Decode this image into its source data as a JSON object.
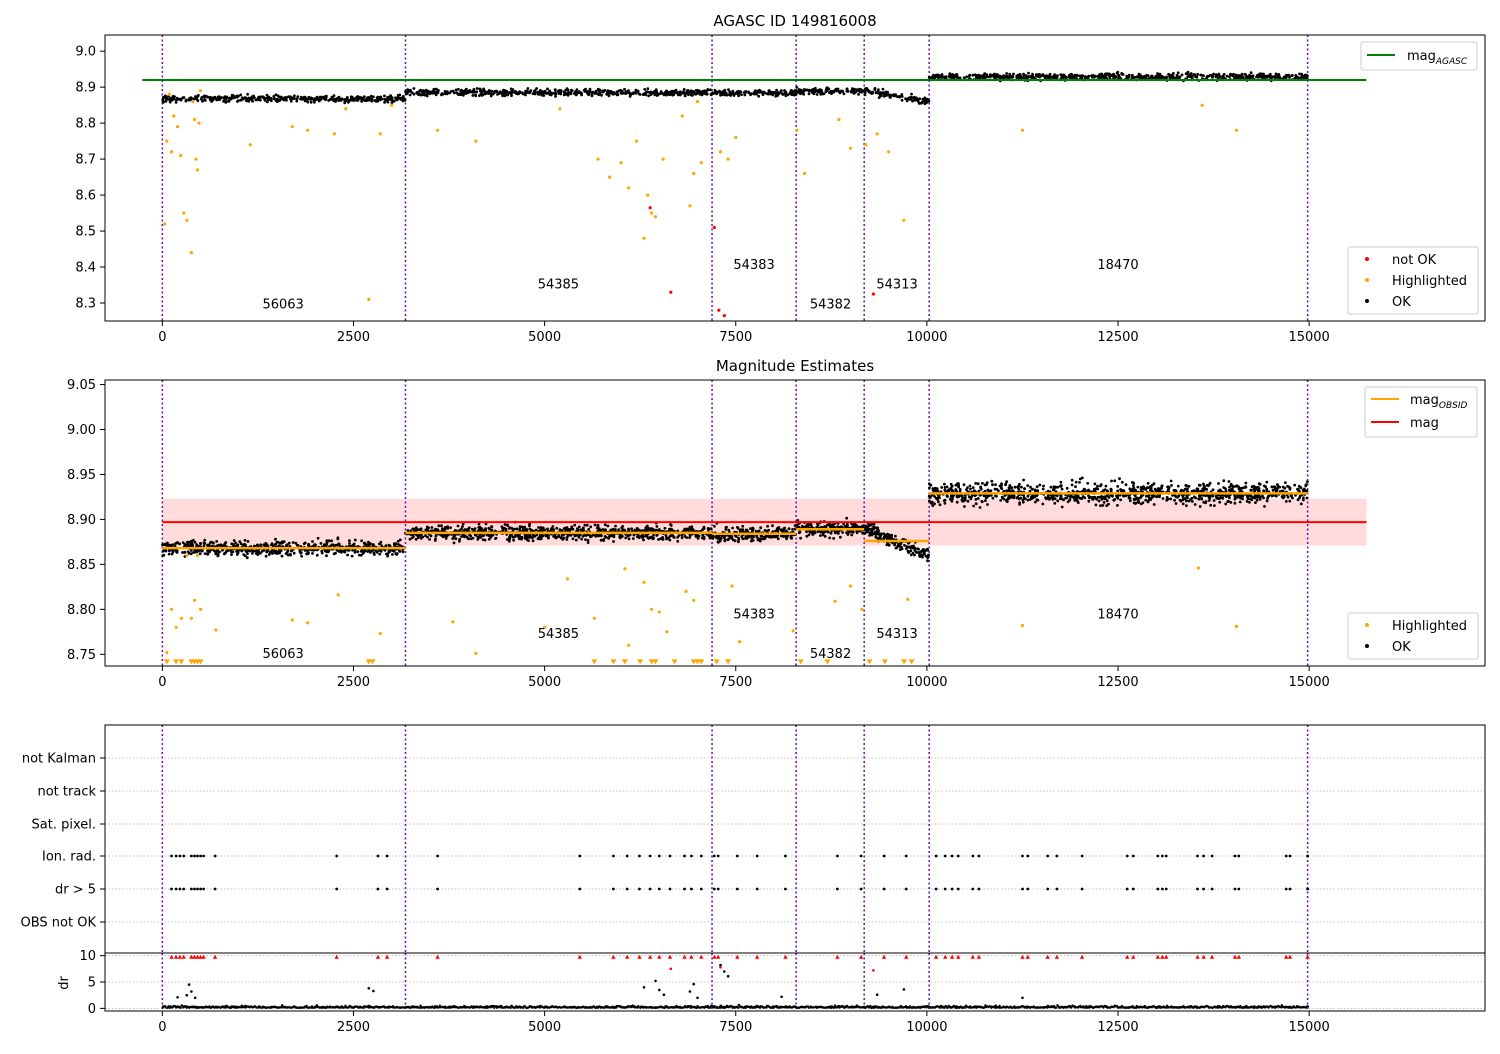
{
  "colors": {
    "ok": "#000000",
    "highlighted": "#ffa500",
    "not_ok": "#ff0000",
    "agasc_line": "#008000",
    "mag_line": "#ff0000",
    "mag_band": "#ffcccc",
    "obsid_line": "#ffa500",
    "obs_boundary": "#6a0dad"
  },
  "chart_data": [
    {
      "type": "scatter",
      "title": "AGASC ID 149816008",
      "xlabel": "",
      "ylabel": "",
      "xlim": [
        -750,
        17300
      ],
      "ylim": [
        8.25,
        9.045
      ],
      "x_ticks": [
        0,
        2500,
        5000,
        7500,
        10000,
        12500,
        15000
      ],
      "x_tick_labels": [
        "0",
        "2500",
        "5000",
        "7500",
        "10000",
        "12500",
        "15000"
      ],
      "y_ticks": [
        8.3,
        8.4,
        8.5,
        8.6,
        8.7,
        8.8,
        8.9,
        9.0
      ],
      "y_tick_labels": [
        "8.3",
        "8.4",
        "8.5",
        "8.6",
        "8.7",
        "8.8",
        "8.9",
        "9.0"
      ],
      "legend_placement_top": "top-right",
      "legend_placement_bottom": "lower-right",
      "legend_top": [
        {
          "label": "mag",
          "subscript": "AGASC",
          "marker": "line",
          "color": "#008000"
        }
      ],
      "legend_bottom": [
        {
          "label": "not OK",
          "marker": "dot",
          "color": "#ff0000"
        },
        {
          "label": "Highlighted",
          "marker": "dot",
          "color": "#ffa500"
        },
        {
          "label": "OK",
          "marker": "dot",
          "color": "#000000"
        }
      ],
      "agasc_mag": 8.92,
      "agasc_line_x": [
        0,
        15750
      ],
      "obs_boundaries": [
        0,
        3180,
        7190,
        8290,
        9180,
        10030,
        14980
      ],
      "obsids": [
        {
          "id": "56063",
          "x_range": [
            0,
            3180
          ],
          "mean_mag": 8.868,
          "label_x": 1580,
          "label_y": 8.285
        },
        {
          "id": "54385",
          "x_range": [
            3180,
            7190
          ],
          "mean_mag": 8.885,
          "label_x": 5180,
          "label_y": 8.34
        },
        {
          "id": "54383",
          "x_range": [
            7190,
            8290
          ],
          "mean_mag": 8.884,
          "label_x": 7740,
          "label_y": 8.395
        },
        {
          "id": "54382",
          "x_range": [
            8290,
            9180
          ],
          "mean_mag": 8.889,
          "label_x": 8740,
          "label_y": 8.285
        },
        {
          "id": "54313",
          "x_range": [
            9180,
            10030
          ],
          "mean_mag": 8.876,
          "label_x": 9610,
          "label_y": 8.34
        },
        {
          "id": "18470",
          "x_range": [
            10030,
            14980
          ],
          "mean_mag": 8.929,
          "label_x": 12500,
          "label_y": 8.395
        }
      ],
      "series": [
        {
          "name": "OK",
          "description_points": "dense band per observation",
          "color": "#000000"
        },
        {
          "name": "Highlighted",
          "color": "#ffa500",
          "x": [
            30,
            60,
            90,
            120,
            150,
            200,
            240,
            280,
            320,
            380,
            400,
            420,
            440,
            460,
            480,
            500,
            1150,
            1700,
            1900,
            2250,
            2400,
            2700,
            2850,
            3000,
            3600,
            4100,
            5200,
            5700,
            5850,
            6000,
            6100,
            6200,
            6300,
            6350,
            6400,
            6450,
            6550,
            6800,
            6900,
            6950,
            7000,
            7050,
            7300,
            7400,
            7500,
            8300,
            8400,
            8850,
            9000,
            9200,
            9350,
            9500,
            9700,
            11250,
            13600,
            14050
          ],
          "y": [
            8.52,
            8.75,
            8.88,
            8.72,
            8.82,
            8.79,
            8.71,
            8.55,
            8.53,
            8.44,
            8.86,
            8.81,
            8.7,
            8.67,
            8.8,
            8.89,
            8.74,
            8.79,
            8.78,
            8.77,
            8.84,
            8.31,
            8.77,
            8.85,
            8.78,
            8.75,
            8.84,
            8.7,
            8.65,
            8.69,
            8.62,
            8.75,
            8.48,
            8.6,
            8.55,
            8.54,
            8.7,
            8.82,
            8.57,
            8.66,
            8.86,
            8.69,
            8.72,
            8.7,
            8.76,
            8.78,
            8.66,
            8.81,
            8.73,
            8.74,
            8.77,
            8.72,
            8.53,
            8.78,
            8.85,
            8.78
          ]
        },
        {
          "name": "not OK",
          "color": "#ff0000",
          "x": [
            6380,
            6650,
            7220,
            7280,
            7350,
            9300
          ],
          "y": [
            8.565,
            8.33,
            8.51,
            8.28,
            8.265,
            8.325
          ]
        }
      ]
    },
    {
      "type": "scatter",
      "title": "Magnitude Estimates",
      "xlabel": "",
      "ylabel": "",
      "xlim": [
        -750,
        17300
      ],
      "ylim": [
        8.737,
        9.055
      ],
      "x_ticks": [
        0,
        2500,
        5000,
        7500,
        10000,
        12500,
        15000
      ],
      "x_tick_labels": [
        "0",
        "2500",
        "5000",
        "7500",
        "10000",
        "12500",
        "15000"
      ],
      "y_ticks": [
        8.75,
        8.8,
        8.85,
        8.9,
        8.95,
        9.0,
        9.05
      ],
      "y_tick_labels": [
        "8.75",
        "8.80",
        "8.85",
        "8.90",
        "8.95",
        "9.00",
        "9.05"
      ],
      "legend_top": [
        {
          "label": "mag",
          "subscript": "OBSID",
          "marker": "line",
          "color": "#ffa500"
        },
        {
          "label": "mag",
          "marker": "line",
          "color": "#ff0000"
        }
      ],
      "legend_bottom": [
        {
          "label": "Highlighted",
          "marker": "dot",
          "color": "#ffa500"
        },
        {
          "label": "OK",
          "marker": "dot",
          "color": "#000000"
        }
      ],
      "mag": 8.897,
      "mag_band": [
        8.871,
        8.923
      ],
      "mag_line_x": [
        0,
        15750
      ],
      "obs_boundaries": [
        0,
        3180,
        7190,
        8290,
        9180,
        10030,
        14980
      ],
      "obsids": [
        {
          "id": "56063",
          "x_range": [
            0,
            3180
          ],
          "mean_mag": 8.868,
          "label_x": 1580,
          "label_y": 8.746
        },
        {
          "id": "54385",
          "x_range": [
            3180,
            7190
          ],
          "mean_mag": 8.885,
          "label_x": 5180,
          "label_y": 8.768
        },
        {
          "id": "54383",
          "x_range": [
            7190,
            8290
          ],
          "mean_mag": 8.884,
          "label_x": 7740,
          "label_y": 8.79
        },
        {
          "id": "54382",
          "x_range": [
            8290,
            9180
          ],
          "mean_mag": 8.889,
          "label_x": 8740,
          "label_y": 8.746
        },
        {
          "id": "54313",
          "x_range": [
            9180,
            10030
          ],
          "mean_mag": 8.876,
          "label_x": 9610,
          "label_y": 8.768
        },
        {
          "id": "18470",
          "x_range": [
            10030,
            14980
          ],
          "mean_mag": 8.929,
          "label_x": 12500,
          "label_y": 8.79
        }
      ],
      "series": [
        {
          "name": "OK",
          "color": "#000000"
        },
        {
          "name": "Highlighted",
          "color": "#ffa500",
          "x": [
            60,
            120,
            180,
            250,
            320,
            380,
            420,
            460,
            500,
            700,
            1700,
            1900,
            2300,
            2850,
            3800,
            4100,
            5000,
            5300,
            5650,
            6050,
            6100,
            6300,
            6400,
            6500,
            6600,
            6850,
            6950,
            7450,
            7550,
            8250,
            8800,
            9000,
            9150,
            9750,
            11250,
            13550,
            14050
          ],
          "y": [
            8.752,
            8.8,
            8.78,
            8.79,
            8.86,
            8.79,
            8.81,
            8.86,
            8.8,
            8.777,
            8.788,
            8.785,
            8.816,
            8.773,
            8.786,
            8.751,
            8.78,
            8.834,
            8.79,
            8.845,
            8.76,
            8.83,
            8.8,
            8.797,
            8.775,
            8.82,
            8.81,
            8.826,
            8.764,
            8.776,
            8.809,
            8.826,
            8.8,
            8.811,
            8.782,
            8.846,
            8.781
          ]
        },
        {
          "name": "Highlighted (clipped below)",
          "color": "#ffa500",
          "x": [
            60,
            180,
            250,
            380,
            420,
            460,
            500,
            2700,
            2750,
            5650,
            5900,
            6050,
            6250,
            6400,
            6450,
            6700,
            6950,
            7000,
            7050,
            7250,
            7400,
            8350,
            8700,
            9250,
            9450,
            9700,
            9800
          ],
          "y": [
            8.741,
            8.741,
            8.741,
            8.741,
            8.741,
            8.741,
            8.741,
            8.741,
            8.741,
            8.741,
            8.741,
            8.741,
            8.741,
            8.741,
            8.741,
            8.741,
            8.741,
            8.741,
            8.741,
            8.741,
            8.741,
            8.741,
            8.741,
            8.741,
            8.741,
            8.741,
            8.741
          ]
        }
      ]
    },
    {
      "type": "scatter",
      "title": "",
      "xlabel": "",
      "ylabel": "",
      "xlim": [
        -750,
        17300
      ],
      "y_categories": [
        "OBS not OK",
        "dr > 5",
        "Ion. rad.",
        "Sat. pixel.",
        "not track",
        "not Kalman"
      ],
      "obs_boundaries": [
        0,
        3180,
        7190,
        8290,
        9180,
        10030,
        14980
      ],
      "flag_x": [
        120,
        180,
        230,
        280,
        380,
        420,
        460,
        500,
        540,
        690,
        2280,
        2820,
        2940,
        3600,
        5460,
        5900,
        6080,
        6240,
        6380,
        6500,
        6640,
        6830,
        6920,
        7050,
        7220,
        7270,
        7520,
        7780,
        8150,
        8830,
        9140,
        9440,
        9730,
        10120,
        10240,
        10330,
        10410,
        10600,
        10680,
        11250,
        11320,
        11580,
        11700,
        12030,
        12620,
        12700,
        13020,
        13080,
        13130,
        13540,
        13620,
        13730,
        14030,
        14080,
        14700,
        14750,
        14980
      ],
      "flag_rows": {
        "dr > 5": "same as flag_x",
        "Ion. rad.": "same as flag_x"
      }
    },
    {
      "type": "scatter",
      "title": "",
      "xlabel": "",
      "ylabel": "dr",
      "xlim": [
        -750,
        17300
      ],
      "ylim": [
        -0.5,
        10.5
      ],
      "y_ticks": [
        0,
        5,
        10
      ],
      "y_tick_labels": [
        "0",
        "5",
        "10"
      ],
      "x_ticks": [
        0,
        2500,
        5000,
        7500,
        10000,
        12500,
        15000
      ],
      "x_tick_labels": [
        "0",
        "2500",
        "5000",
        "7500",
        "10000",
        "12500",
        "15000"
      ],
      "obs_boundaries": [
        0,
        3180,
        7190,
        8290,
        9180,
        10030,
        14980
      ],
      "series": [
        {
          "name": "dr",
          "color": "#000000",
          "typical_range": [
            0,
            1
          ]
        },
        {
          "name": "dr clipped",
          "color": "#ff0000",
          "y": 9.8,
          "note": "same x as flag_x"
        },
        {
          "name": "dr outliers",
          "color": "#000000",
          "x": [
            200,
            320,
            350,
            380,
            430,
            2700,
            2760,
            6300,
            6450,
            6500,
            6560,
            6900,
            6950,
            7000,
            7300,
            7350,
            7400,
            8100,
            9350,
            9700,
            11250
          ],
          "y": [
            2.1,
            2.5,
            4.5,
            3.2,
            2.0,
            3.8,
            3.3,
            4.0,
            5.2,
            3.5,
            2.6,
            3.2,
            4.6,
            2.0,
            8.2,
            7.0,
            6.1,
            2.2,
            2.6,
            3.6,
            2.0
          ]
        },
        {
          "name": "dr outliers (red)",
          "color": "#ff0000",
          "x": [
            6650,
            7300,
            9300
          ],
          "y": [
            7.5,
            7.8,
            7.2
          ]
        }
      ]
    }
  ]
}
